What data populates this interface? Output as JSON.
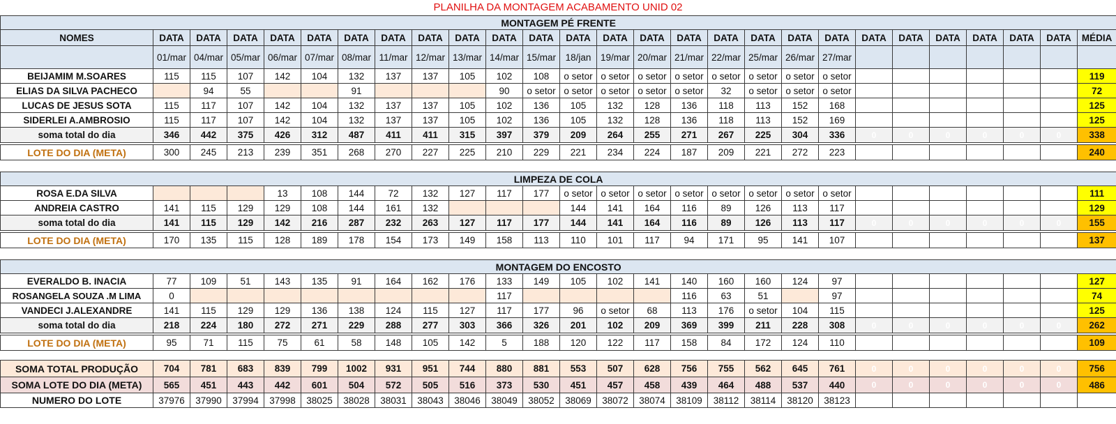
{
  "title": "PLANILHA DA MONTAGEM ACABAMENTO UNID 02",
  "header": {
    "names_label": "NOMES",
    "data_label": "DATA",
    "media_label": "MÉDIA",
    "dates": [
      "01/mar",
      "04/mar",
      "05/mar",
      "06/mar",
      "07/mar",
      "08/mar",
      "11/mar",
      "12/mar",
      "13/mar",
      "14/mar",
      "15/mar",
      "18/jan",
      "19/mar",
      "20/mar",
      "21/mar",
      "22/mar",
      "25/mar",
      "26/mar",
      "27/mar",
      "",
      "",
      "",
      "",
      "",
      ""
    ]
  },
  "sections": [
    {
      "title": "MONTAGEM PÉ FRENTE",
      "rows": [
        {
          "name": "BEIJAMIM M.SOARES",
          "values": [
            "115",
            "115",
            "107",
            "142",
            "104",
            "132",
            "137",
            "137",
            "105",
            "102",
            "108",
            "o setor",
            "o setor",
            "o setor",
            "o setor",
            "o setor",
            "o setor",
            "o setor",
            "o setor",
            "",
            "",
            "",
            "",
            "",
            ""
          ],
          "media": "119"
        },
        {
          "name": "ELIAS DA SILVA PACHECO",
          "values": [
            "",
            "94",
            "55",
            "",
            "",
            "91",
            "",
            "",
            "",
            "90",
            "o setor",
            "o setor",
            "o setor",
            "o setor",
            "o setor",
            "32",
            "o setor",
            "o setor",
            "o setor",
            "",
            "",
            "",
            "",
            "",
            ""
          ],
          "media": "72"
        },
        {
          "name": "LUCAS DE JESUS SOTA",
          "values": [
            "115",
            "117",
            "107",
            "142",
            "104",
            "132",
            "137",
            "137",
            "105",
            "102",
            "136",
            "105",
            "132",
            "128",
            "136",
            "118",
            "113",
            "152",
            "168",
            "",
            "",
            "",
            "",
            "",
            ""
          ],
          "media": "125"
        },
        {
          "name": "SIDERLEI A.AMBROSIO",
          "values": [
            "115",
            "117",
            "107",
            "142",
            "104",
            "132",
            "137",
            "137",
            "105",
            "102",
            "136",
            "105",
            "132",
            "128",
            "136",
            "118",
            "113",
            "152",
            "169",
            "",
            "",
            "",
            "",
            "",
            ""
          ],
          "media": "125"
        }
      ],
      "soma": {
        "label": "soma total  do dia",
        "values": [
          "346",
          "442",
          "375",
          "426",
          "312",
          "487",
          "411",
          "411",
          "315",
          "397",
          "379",
          "209",
          "264",
          "255",
          "271",
          "267",
          "225",
          "304",
          "336",
          "0",
          "0",
          "0",
          "0",
          "0",
          "0"
        ],
        "media": "338"
      },
      "meta": {
        "label": "LOTE DO DIA (META)",
        "values": [
          "300",
          "245",
          "213",
          "239",
          "351",
          "268",
          "270",
          "227",
          "225",
          "210",
          "229",
          "221",
          "234",
          "224",
          "187",
          "209",
          "221",
          "272",
          "223",
          "",
          "",
          "",
          "",
          "",
          ""
        ],
        "media": "240"
      }
    },
    {
      "title": "LIMPEZA DE COLA",
      "rows": [
        {
          "name": "ROSA E.DA SILVA",
          "values": [
            "",
            "",
            "",
            "13",
            "108",
            "144",
            "72",
            "132",
            "127",
            "117",
            "177",
            "o setor",
            "o setor",
            "o setor",
            "o setor",
            "o setor",
            "o setor",
            "o setor",
            "o setor",
            "",
            "",
            "",
            "",
            "",
            ""
          ],
          "media": "111"
        },
        {
          "name": "ANDREIA CASTRO",
          "values": [
            "141",
            "115",
            "129",
            "129",
            "108",
            "144",
            "161",
            "132",
            "",
            "",
            "",
            "144",
            "141",
            "164",
            "116",
            "89",
            "126",
            "113",
            "117",
            "",
            "",
            "",
            "",
            "",
            ""
          ],
          "media": "129"
        }
      ],
      "soma": {
        "label": "soma total  do dia",
        "values": [
          "141",
          "115",
          "129",
          "142",
          "216",
          "287",
          "232",
          "263",
          "127",
          "117",
          "177",
          "144",
          "141",
          "164",
          "116",
          "89",
          "126",
          "113",
          "117",
          "0",
          "0",
          "0",
          "0",
          "0",
          "0"
        ],
        "media": "155"
      },
      "meta": {
        "label": "LOTE DO DIA (META)",
        "values": [
          "170",
          "135",
          "115",
          "128",
          "189",
          "178",
          "154",
          "173",
          "149",
          "158",
          "113",
          "110",
          "101",
          "117",
          "94",
          "171",
          "95",
          "141",
          "107",
          "",
          "",
          "",
          "",
          "",
          ""
        ],
        "media": "137"
      }
    },
    {
      "title": "MONTAGEM DO ENCOSTO",
      "rows": [
        {
          "name": "EVERALDO B. INACIA",
          "values": [
            "77",
            "109",
            "51",
            "143",
            "135",
            "91",
            "164",
            "162",
            "176",
            "133",
            "149",
            "105",
            "102",
            "141",
            "140",
            "160",
            "160",
            "124",
            "97",
            "",
            "",
            "",
            "",
            "",
            ""
          ],
          "media": "127"
        },
        {
          "name": "ROSANGELA SOUZA .M LIMA",
          "big": true,
          "values": [
            "0",
            "",
            "",
            "",
            "",
            "",
            "",
            "",
            "",
            "117",
            "",
            "",
            "",
            "",
            "116",
            "63",
            "51",
            "",
            "97",
            "",
            "",
            "",
            "",
            "",
            ""
          ],
          "media": "74"
        },
        {
          "name": "VANDECI J.ALEXANDRE",
          "values": [
            "141",
            "115",
            "129",
            "129",
            "136",
            "138",
            "124",
            "115",
            "127",
            "117",
            "177",
            "96",
            "o setor",
            "68",
            "113",
            "176",
            "o setor",
            "104",
            "115",
            "",
            "",
            "",
            "",
            "",
            ""
          ],
          "media": "125"
        }
      ],
      "soma": {
        "label": "soma total  do dia",
        "values": [
          "218",
          "224",
          "180",
          "272",
          "271",
          "229",
          "288",
          "277",
          "303",
          "366",
          "326",
          "201",
          "102",
          "209",
          "369",
          "399",
          "211",
          "228",
          "308",
          "0",
          "0",
          "0",
          "0",
          "0",
          "0"
        ],
        "media": "262"
      },
      "meta": {
        "label": "LOTE DO DIA (META)",
        "values": [
          "95",
          "71",
          "115",
          "75",
          "61",
          "58",
          "148",
          "105",
          "142",
          "5",
          "188",
          "120",
          "122",
          "117",
          "158",
          "84",
          "172",
          "124",
          "110",
          "",
          "",
          "",
          "",
          "",
          ""
        ],
        "media": "109"
      }
    }
  ],
  "totals": {
    "producao": {
      "label": "SOMA TOTAL PRODUÇÃO",
      "values": [
        "704",
        "781",
        "683",
        "839",
        "799",
        "1002",
        "931",
        "951",
        "744",
        "880",
        "881",
        "553",
        "507",
        "628",
        "756",
        "755",
        "562",
        "645",
        "761",
        "0",
        "0",
        "0",
        "0",
        "0",
        "0"
      ],
      "media": "756"
    },
    "meta": {
      "label": "SOMA LOTE DO DIA (META)",
      "values": [
        "565",
        "451",
        "443",
        "442",
        "601",
        "504",
        "572",
        "505",
        "516",
        "373",
        "530",
        "451",
        "457",
        "458",
        "439",
        "464",
        "488",
        "537",
        "440",
        "0",
        "0",
        "0",
        "0",
        "0",
        "0"
      ],
      "media": "486"
    },
    "lote": {
      "label": "NUMERO DO LOTE",
      "values": [
        "37976",
        "37990",
        "37994",
        "37998",
        "38025",
        "38028",
        "38031",
        "38043",
        "38046",
        "38049",
        "38052",
        "38069",
        "38072",
        "38074",
        "38109",
        "38112",
        "38114",
        "38120",
        "38123",
        "",
        "",
        "",
        "",
        "",
        ""
      ]
    }
  },
  "colors": {
    "header_bg": "#dce6f1",
    "blank_cell": "#fde9d9",
    "media_yellow": "#ffff00",
    "media_orange": "#ffc000",
    "soma_text": "#e26b0a",
    "title_red": "#e01010"
  }
}
